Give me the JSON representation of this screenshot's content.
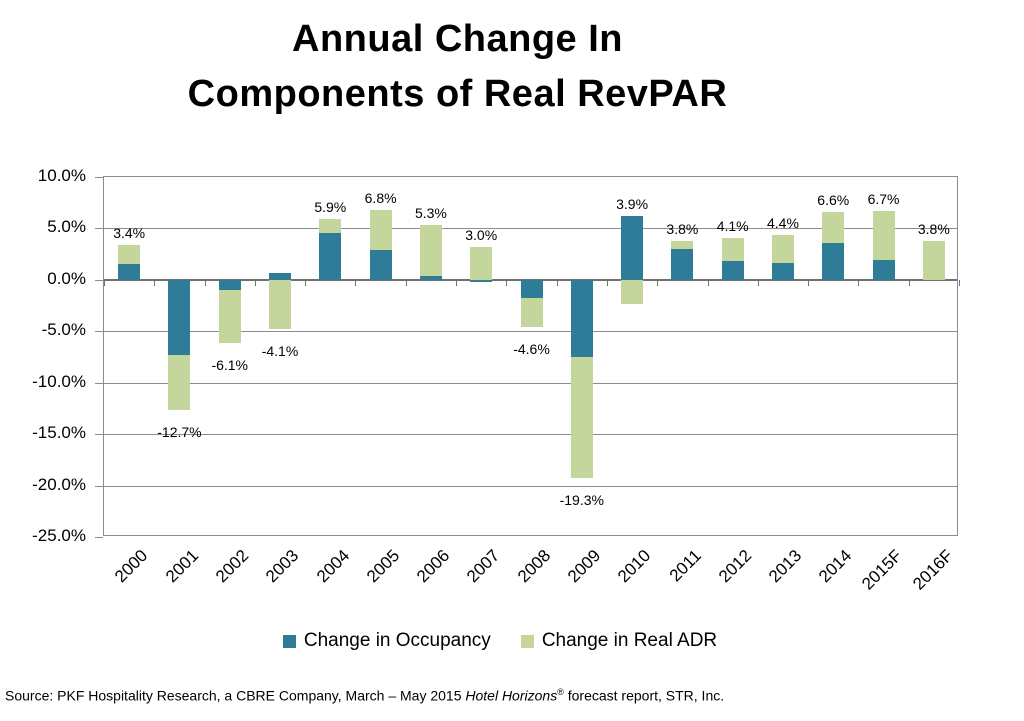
{
  "title": {
    "line1": "Annual Change In",
    "line2": "Components of Real RevPAR"
  },
  "legend": {
    "items": [
      {
        "label": "Change in Occupancy",
        "color": "#2F7C99"
      },
      {
        "label": "Change in Real ADR",
        "color": "#C4D69B"
      }
    ]
  },
  "source": {
    "prefix": "Source: PKF Hospitality Research, a CBRE Company, March – May 2015 ",
    "report_name": "Hotel Horizons",
    "registered_mark": "®",
    "suffix": " forecast report, STR, Inc."
  },
  "chart_data": {
    "type": "bar",
    "stacked": true,
    "title": "Annual Change In Components of Real RevPAR",
    "categories": [
      "2000",
      "2001",
      "2002",
      "2003",
      "2004",
      "2005",
      "2006",
      "2007",
      "2008",
      "2009",
      "2010",
      "2011",
      "2012",
      "2013",
      "2014",
      "2015F",
      "2016F"
    ],
    "series": [
      {
        "name": "Change in Occupancy",
        "color": "#2F7C99",
        "values": [
          1.5,
          -7.3,
          -1.0,
          0.7,
          4.6,
          2.9,
          0.4,
          -0.2,
          -1.8,
          -7.5,
          6.2,
          3.0,
          1.8,
          1.6,
          3.6,
          1.9,
          0.0
        ]
      },
      {
        "name": "Change in Real ADR",
        "color": "#C4D69B",
        "values": [
          1.9,
          -5.4,
          -5.1,
          -4.8,
          1.3,
          3.9,
          4.9,
          3.2,
          -2.8,
          -11.8,
          -2.3,
          0.8,
          2.3,
          2.8,
          3.0,
          4.8,
          3.8
        ]
      }
    ],
    "total_labels": [
      "3.4%",
      "-12.7%",
      "-6.1%",
      "-4.1%",
      "5.9%",
      "6.8%",
      "5.3%",
      "3.0%",
      "-4.6%",
      "-19.3%",
      "3.9%",
      "3.8%",
      "4.1%",
      "4.4%",
      "6.6%",
      "6.7%",
      "3.8%"
    ],
    "y_ticks": [
      "10.0%",
      "5.0%",
      "0.0%",
      "-5.0%",
      "-10.0%",
      "-15.0%",
      "-20.0%",
      "-25.0%"
    ],
    "ylim": [
      -25,
      10
    ],
    "grid": true,
    "legend_position": "bottom"
  }
}
